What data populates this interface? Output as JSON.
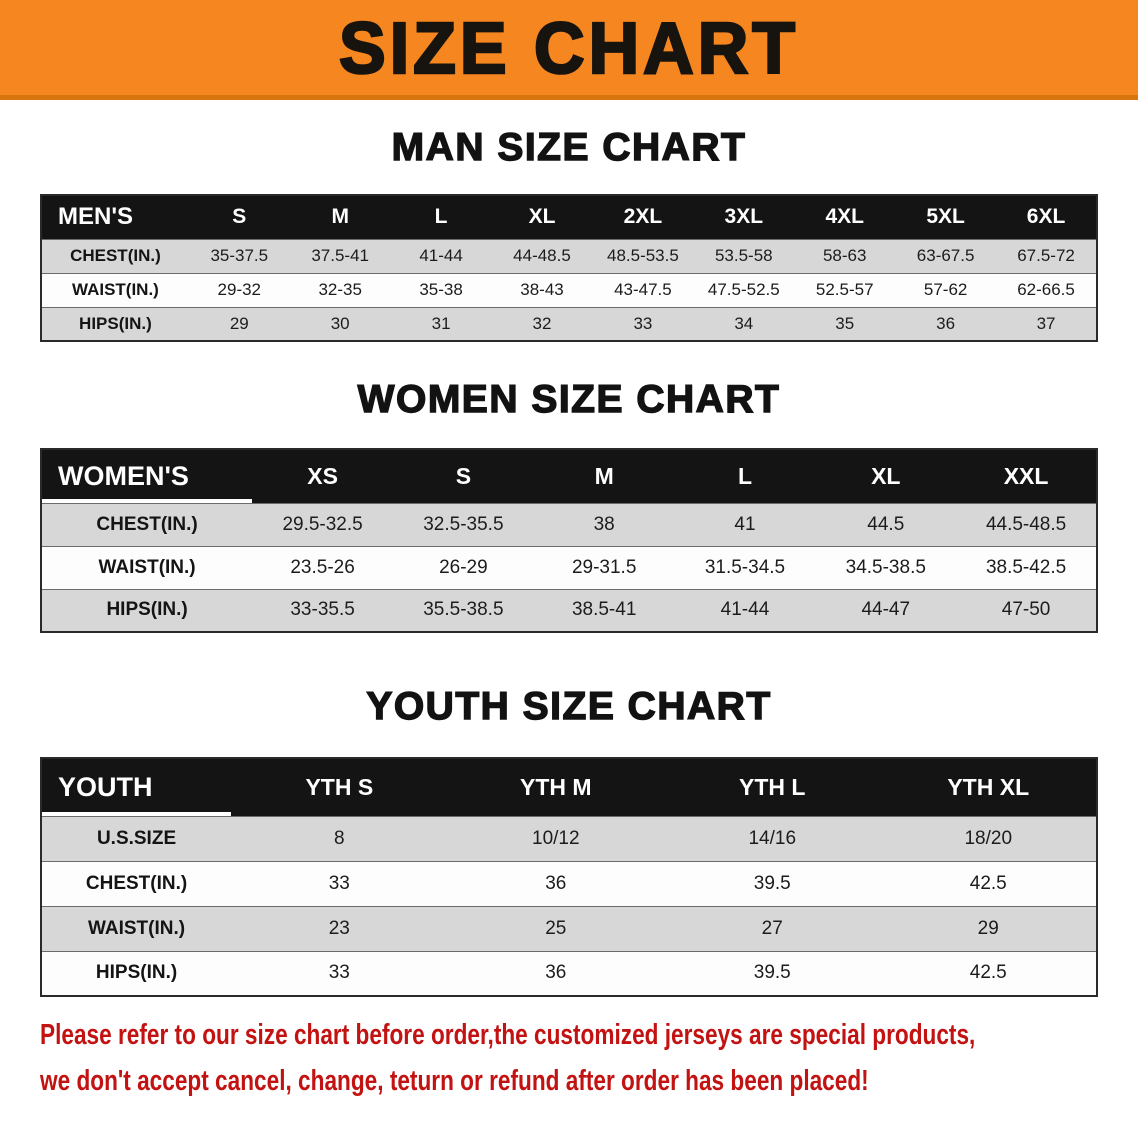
{
  "banner": {
    "title": "SIZE CHART",
    "bg_color": "#f6861f"
  },
  "sections": [
    {
      "id": "men",
      "heading": "MAN SIZE CHART",
      "table": {
        "corner": "MEN'S",
        "columns": [
          "S",
          "M",
          "L",
          "XL",
          "2XL",
          "3XL",
          "4XL",
          "5XL",
          "6XL"
        ],
        "rows": [
          {
            "label": "CHEST(IN.)",
            "values": [
              "35-37.5",
              "37.5-41",
              "41-44",
              "44-48.5",
              "48.5-53.5",
              "53.5-58",
              "58-63",
              "63-67.5",
              "67.5-72"
            ]
          },
          {
            "label": "WAIST(IN.)",
            "values": [
              "29-32",
              "32-35",
              "35-38",
              "38-43",
              "43-47.5",
              "47.5-52.5",
              "52.5-57",
              "57-62",
              "62-66.5"
            ]
          },
          {
            "label": "HIPS(IN.)",
            "values": [
              "29",
              "30",
              "31",
              "32",
              "33",
              "34",
              "35",
              "36",
              "37"
            ]
          }
        ]
      }
    },
    {
      "id": "women",
      "heading": "WOMEN SIZE CHART",
      "table": {
        "corner": "WOMEN'S",
        "columns": [
          "XS",
          "S",
          "M",
          "L",
          "XL",
          "XXL"
        ],
        "rows": [
          {
            "label": "CHEST(IN.)",
            "values": [
              "29.5-32.5",
              "32.5-35.5",
              "38",
              "41",
              "44.5",
              "44.5-48.5"
            ]
          },
          {
            "label": "WAIST(IN.)",
            "values": [
              "23.5-26",
              "26-29",
              "29-31.5",
              "31.5-34.5",
              "34.5-38.5",
              "38.5-42.5"
            ]
          },
          {
            "label": "HIPS(IN.)",
            "values": [
              "33-35.5",
              "35.5-38.5",
              "38.5-41",
              "41-44",
              "44-47",
              "47-50"
            ]
          }
        ]
      }
    },
    {
      "id": "youth",
      "heading": "YOUTH SIZE CHART",
      "table": {
        "corner": "YOUTH",
        "columns": [
          "YTH S",
          "YTH M",
          "YTH L",
          "YTH XL"
        ],
        "rows": [
          {
            "label": "U.S.SIZE",
            "values": [
              "8",
              "10/12",
              "14/16",
              "18/20"
            ]
          },
          {
            "label": "CHEST(IN.)",
            "values": [
              "33",
              "36",
              "39.5",
              "42.5"
            ]
          },
          {
            "label": "WAIST(IN.)",
            "values": [
              "23",
              "25",
              "27",
              "29"
            ]
          },
          {
            "label": "HIPS(IN.)",
            "values": [
              "33",
              "36",
              "39.5",
              "42.5"
            ]
          }
        ]
      }
    }
  ],
  "disclaimer": {
    "lines": [
      "Please refer to our size chart before order,the customized jerseys are special products,",
      "we don't accept cancel, change, teturn or refund after order has been placed!"
    ],
    "color": "#c31212"
  }
}
